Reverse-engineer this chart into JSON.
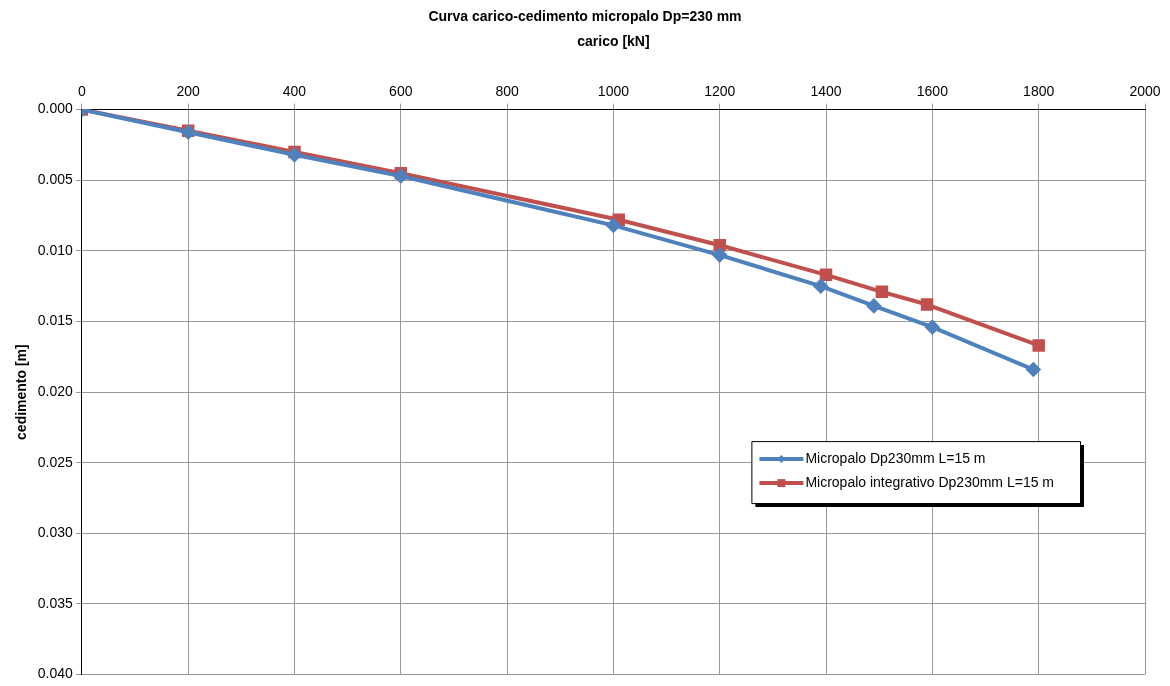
{
  "chart_data": {
    "type": "line",
    "title": "Curva carico-cedimento micropalo Dp=230 mm",
    "xlabel": "carico [kN]",
    "ylabel": "cedimento [m]",
    "xlim": [
      0,
      2000
    ],
    "xticks": [
      0,
      200,
      400,
      600,
      800,
      1000,
      1200,
      1400,
      1600,
      1800,
      2000
    ],
    "ylim": [
      0.04,
      0
    ],
    "yticks": [
      {
        "value": 0,
        "label": "0.000"
      },
      {
        "value": 0.005,
        "label": "0.005"
      },
      {
        "value": 0.01,
        "label": "0.010"
      },
      {
        "value": 0.015,
        "label": "0.015"
      },
      {
        "value": 0.02,
        "label": "0.020"
      },
      {
        "value": 0.025,
        "label": "0.025"
      },
      {
        "value": 0.03,
        "label": "0.030"
      },
      {
        "value": 0.035,
        "label": "0.035"
      },
      {
        "value": 0.04,
        "label": "0.040"
      }
    ],
    "grid": true,
    "legend": "right",
    "line_style": "solid",
    "series": [
      {
        "name": "Micropalo Dp230mm L=15 m",
        "color": "#4f81bd",
        "marker": "diamond",
        "x": [
          0,
          200,
          400,
          600,
          1000,
          1200,
          1390,
          1490,
          1600,
          1790
        ],
        "values": [
          0,
          0.0016,
          0.0032,
          0.0047,
          0.0082,
          0.0103,
          0.0125,
          0.0139,
          0.0154,
          0.0184
        ]
      },
      {
        "name": "Micropalo integrativo Dp230mm L=15 m",
        "color": "#c0504d",
        "marker": "square",
        "x": [
          0,
          200,
          400,
          600,
          1010,
          1200,
          1400,
          1505,
          1590,
          1800
        ],
        "values": [
          0,
          0.0015,
          0.003,
          0.0045,
          0.0078,
          0.0096,
          0.0117,
          0.0129,
          0.0138,
          0.0167
        ]
      }
    ]
  }
}
